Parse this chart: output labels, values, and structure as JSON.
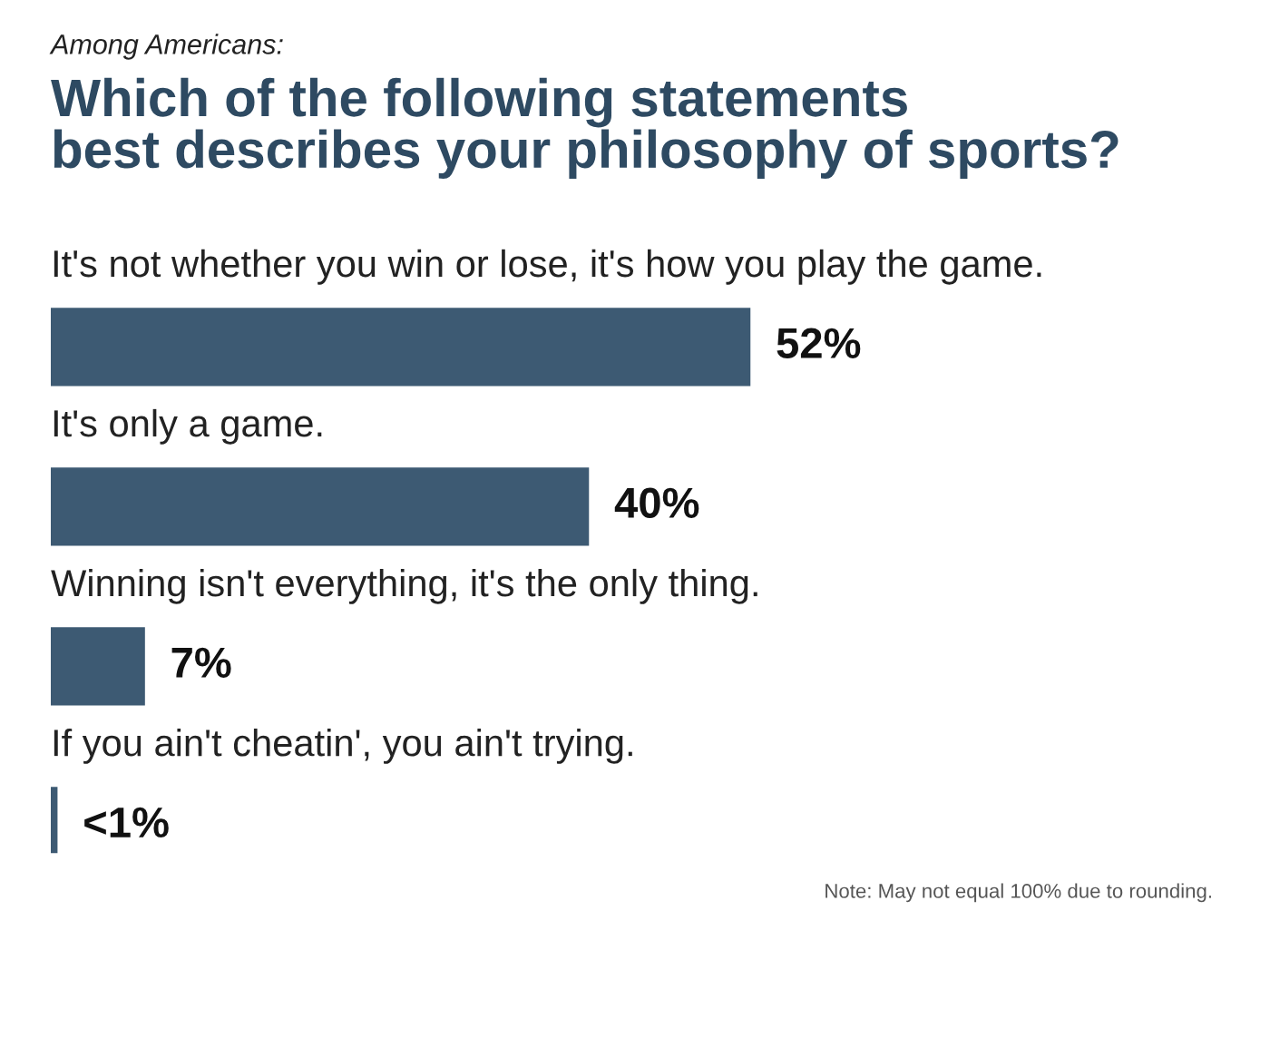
{
  "chart_data": {
    "type": "bar",
    "orientation": "horizontal",
    "subtitle": "Among Americans:",
    "title": "Which of the following statements\nbest describes your philosophy of sports?",
    "categories": [
      "It's not whether you win or lose, it's how you play the game.",
      "It's only a game.",
      "Winning isn't everything, it's the only thing.",
      "If you ain't cheatin', you ain't trying."
    ],
    "values": [
      52,
      40,
      7,
      0.5
    ],
    "value_labels": [
      "52%",
      "40%",
      "7%",
      "<1%"
    ],
    "color": "#3d5a73",
    "annotations": [
      "Note: May not equal 100% due to rounding."
    ]
  }
}
